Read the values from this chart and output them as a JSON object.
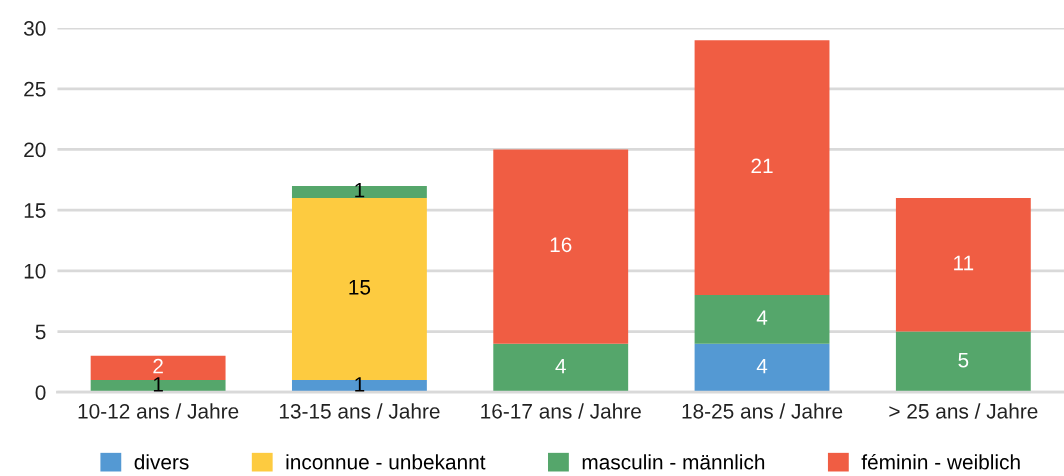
{
  "chart_data": {
    "type": "bar",
    "stacked": true,
    "categories": [
      "10-12 ans / Jahre",
      "13-15 ans / Jahre",
      "16-17 ans / Jahre",
      "18-25 ans / Jahre",
      "> 25 ans / Jahre"
    ],
    "series": [
      {
        "name": "divers",
        "color": "#5499d3",
        "values": [
          0,
          1,
          0,
          4,
          0
        ],
        "value_labels": [
          null,
          "1",
          null,
          "4",
          null
        ]
      },
      {
        "name": "inconnue - unbekannt",
        "color": "#fdcb40",
        "values": [
          0,
          15,
          0,
          0,
          0
        ],
        "value_labels": [
          null,
          "15",
          null,
          null,
          null
        ]
      },
      {
        "name": "masculin - männlich",
        "color": "#55a66b",
        "values": [
          1,
          1,
          4,
          4,
          5
        ],
        "value_labels": [
          "1",
          "1",
          "4",
          "4",
          "5"
        ]
      },
      {
        "name": "féminin - weiblich",
        "color": "#f05d43",
        "values": [
          2,
          0,
          16,
          21,
          11
        ],
        "value_labels": [
          "2",
          null,
          "16",
          "21",
          "11"
        ]
      }
    ],
    "ylim": [
      0,
      30
    ],
    "yticks": [
      0,
      5,
      10,
      15,
      20,
      25,
      30
    ],
    "grid": "y",
    "legend": "bottom"
  }
}
